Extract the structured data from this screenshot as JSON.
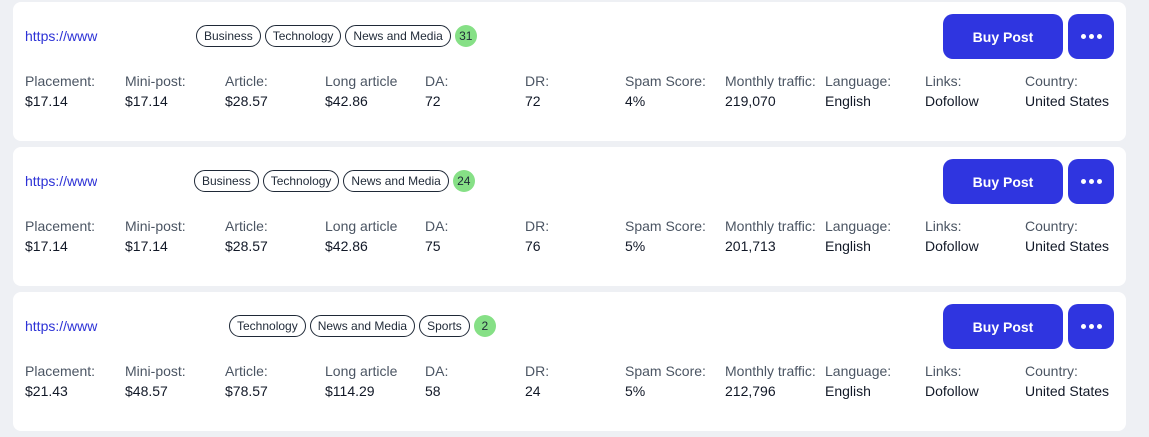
{
  "listings": [
    {
      "url": "https://www",
      "tags": [
        "Business",
        "Technology",
        "News and Media"
      ],
      "count": "31",
      "buy_label": "Buy Post",
      "metrics": [
        {
          "label": "Placement:",
          "value": "$17.14"
        },
        {
          "label": "Mini-post:",
          "value": "$17.14"
        },
        {
          "label": "Article:",
          "value": "$28.57"
        },
        {
          "label": "Long article",
          "value": "$42.86"
        },
        {
          "label": "DA:",
          "value": "72"
        },
        {
          "label": "DR:",
          "value": "72"
        },
        {
          "label": "Spam Score:",
          "value": "4%"
        },
        {
          "label": "Monthly traffic:",
          "value": "219,070"
        },
        {
          "label": "Language:",
          "value": "English"
        },
        {
          "label": "Links:",
          "value": "Dofollow"
        },
        {
          "label": "Country:",
          "value": "United States"
        }
      ]
    },
    {
      "url": "https://www",
      "tags": [
        "Business",
        "Technology",
        "News and Media"
      ],
      "count": "24",
      "buy_label": "Buy Post",
      "metrics": [
        {
          "label": "Placement:",
          "value": "$17.14"
        },
        {
          "label": "Mini-post:",
          "value": "$17.14"
        },
        {
          "label": "Article:",
          "value": "$28.57"
        },
        {
          "label": "Long article",
          "value": "$42.86"
        },
        {
          "label": "DA:",
          "value": "75"
        },
        {
          "label": "DR:",
          "value": "76"
        },
        {
          "label": "Spam Score:",
          "value": "5%"
        },
        {
          "label": "Monthly traffic:",
          "value": "201,713"
        },
        {
          "label": "Language:",
          "value": "English"
        },
        {
          "label": "Links:",
          "value": "Dofollow"
        },
        {
          "label": "Country:",
          "value": "United States"
        }
      ]
    },
    {
      "url": "https://www",
      "tags": [
        "Technology",
        "News and Media",
        "Sports"
      ],
      "count": "2",
      "buy_label": "Buy Post",
      "metrics": [
        {
          "label": "Placement:",
          "value": "$21.43"
        },
        {
          "label": "Mini-post:",
          "value": "$48.57"
        },
        {
          "label": "Article:",
          "value": "$78.57"
        },
        {
          "label": "Long article",
          "value": "$114.29"
        },
        {
          "label": "DA:",
          "value": "58"
        },
        {
          "label": "DR:",
          "value": "24"
        },
        {
          "label": "Spam Score:",
          "value": "5%"
        },
        {
          "label": "Monthly traffic:",
          "value": "212,796"
        },
        {
          "label": "Language:",
          "value": "English"
        },
        {
          "label": "Links:",
          "value": "Dofollow"
        },
        {
          "label": "Country:",
          "value": "United States"
        }
      ]
    }
  ],
  "more_icon": "more-horizontal-icon",
  "colors": {
    "accent": "#2f35e0",
    "link": "#2d32d6",
    "count_badge": "#86e086",
    "background": "#eef0f4"
  }
}
